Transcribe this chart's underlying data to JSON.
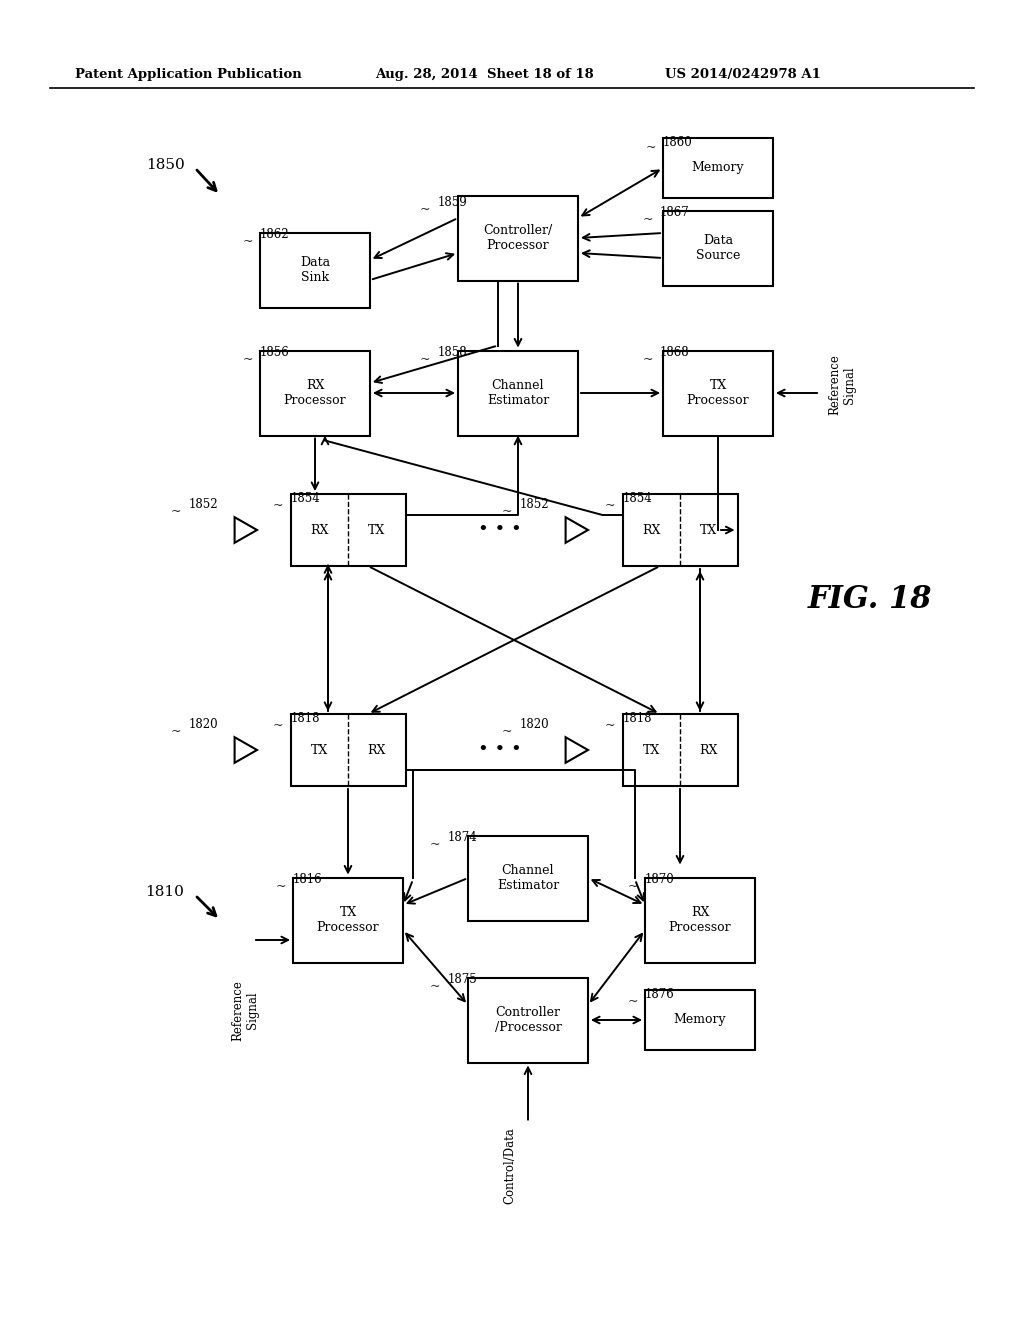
{
  "header_left": "Patent Application Publication",
  "header_mid": "Aug. 28, 2014  Sheet 18 of 18",
  "header_right": "US 2014/0242978 A1",
  "fig_label": "FIG. 18",
  "bg": "#ffffff"
}
